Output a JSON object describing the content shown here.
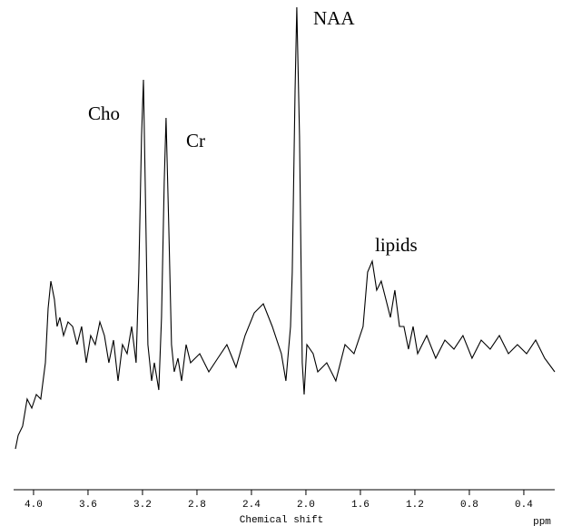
{
  "chart_data": {
    "type": "line",
    "annotations": [
      "Cho",
      "Cr",
      "NAA",
      "lipids"
    ],
    "x_label": "Chemical shift",
    "x_unit": "ppm",
    "xlim": [
      4.133,
      0.173
    ],
    "ylim": [
      0,
      540
    ],
    "xticks": [
      {
        "value": 4,
        "label": "4.0"
      },
      3.6,
      3.2,
      2.8,
      2.4,
      {
        "value": 2,
        "label": "2.0"
      },
      1.6,
      1.2,
      0.8,
      0.4
    ],
    "color": "#000000",
    "x": [
      4.133,
      4.113,
      4.08,
      4.047,
      4.013,
      3.98,
      3.947,
      3.913,
      3.893,
      3.873,
      3.847,
      3.827,
      3.807,
      3.78,
      3.747,
      3.713,
      3.68,
      3.647,
      3.613,
      3.58,
      3.547,
      3.513,
      3.48,
      3.447,
      3.413,
      3.38,
      3.347,
      3.313,
      3.28,
      3.247,
      3.227,
      3.207,
      3.193,
      3.18,
      3.16,
      3.133,
      3.113,
      3.08,
      3.06,
      3.04,
      3.027,
      3.007,
      2.987,
      2.967,
      2.94,
      2.913,
      2.88,
      2.847,
      2.78,
      2.713,
      2.647,
      2.58,
      2.513,
      2.447,
      2.38,
      2.313,
      2.247,
      2.18,
      2.147,
      2.113,
      2.1,
      2.08,
      2.067,
      2.047,
      2.027,
      2.013,
      1.993,
      1.947,
      1.913,
      1.847,
      1.78,
      1.713,
      1.647,
      1.58,
      1.547,
      1.513,
      1.48,
      1.447,
      1.413,
      1.38,
      1.347,
      1.313,
      1.28,
      1.247,
      1.213,
      1.18,
      1.113,
      1.047,
      0.98,
      0.913,
      0.847,
      0.78,
      0.713,
      0.647,
      0.58,
      0.513,
      0.447,
      0.38,
      0.313,
      0.247,
      0.173
    ],
    "values": [
      45,
      60,
      70,
      100,
      90,
      105,
      100,
      140,
      200,
      230,
      210,
      180,
      190,
      170,
      185,
      180,
      160,
      180,
      140,
      170,
      160,
      185,
      170,
      140,
      165,
      120,
      160,
      150,
      180,
      140,
      240,
      390,
      452,
      340,
      160,
      120,
      140,
      110,
      190,
      340,
      410,
      290,
      160,
      130,
      145,
      120,
      160,
      140,
      150,
      130,
      145,
      160,
      135,
      170,
      195,
      205,
      180,
      150,
      120,
      180,
      240,
      440,
      532,
      390,
      140,
      105,
      160,
      150,
      130,
      140,
      120,
      160,
      150,
      180,
      240,
      252,
      220,
      230,
      210,
      190,
      220,
      180,
      180,
      155,
      180,
      150,
      170,
      145,
      165,
      155,
      170,
      145,
      165,
      155,
      170,
      150,
      160,
      150,
      165,
      145,
      130
    ]
  }
}
